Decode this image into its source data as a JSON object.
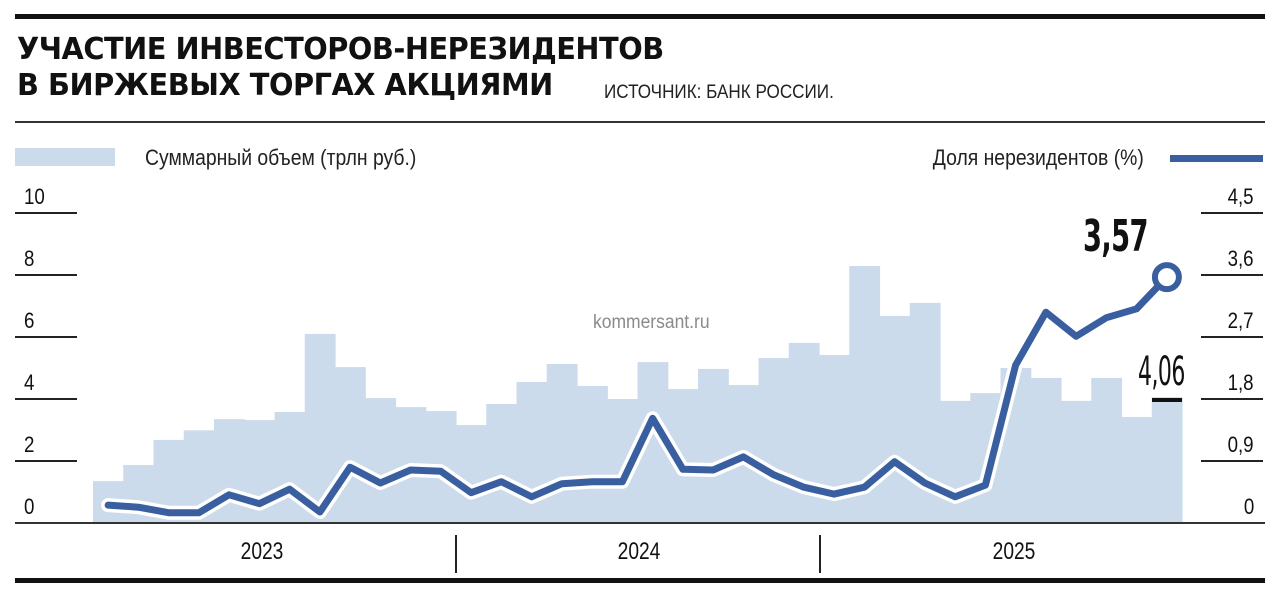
{
  "header": {
    "title_line1": "УЧАСТИЕ ИНВЕСТОРОВ-НЕРЕЗИДЕНТОВ",
    "title_line2": "В БИРЖЕВЫХ ТОРГАХ АКЦИЯМИ",
    "source": "ИСТОЧНИК: БАНК РОССИИ."
  },
  "legend": {
    "bars_label": "Суммарный объем (трлн руб.)",
    "line_label": "Доля нерезидентов (%)"
  },
  "axes": {
    "left_ticks": [
      "10",
      "8",
      "6",
      "4",
      "2",
      "0"
    ],
    "right_ticks": [
      "4,5",
      "3,6",
      "2,7",
      "1,8",
      "0,9",
      "0"
    ],
    "years": [
      "2023",
      "2024",
      "2025"
    ]
  },
  "annotations": {
    "last_share": "3,57",
    "last_volume": "4,06"
  },
  "watermark": "kommersant.ru",
  "colors": {
    "bar": "#ccdbeb",
    "line": "#3a5fa0",
    "line_halo": "#ffffff",
    "text": "#111111"
  },
  "chart_data": {
    "type": "bar+line",
    "title": "Участие инвесторов-нерезидентов в биржевых торгах акциями",
    "subtitle": "Источник: Банк России.",
    "xlabel": "",
    "categories_note": "monthly, Jan 2023 – Dec 2025",
    "x_groups": [
      "2023",
      "2024",
      "2025"
    ],
    "x": [
      "2023-01",
      "2023-02",
      "2023-03",
      "2023-04",
      "2023-05",
      "2023-06",
      "2023-07",
      "2023-08",
      "2023-09",
      "2023-10",
      "2023-11",
      "2023-12",
      "2024-01",
      "2024-02",
      "2024-03",
      "2024-04",
      "2024-05",
      "2024-06",
      "2024-07",
      "2024-08",
      "2024-09",
      "2024-10",
      "2024-11",
      "2024-12",
      "2025-01",
      "2025-02",
      "2025-03",
      "2025-04",
      "2025-05",
      "2025-06",
      "2025-07",
      "2025-08",
      "2025-09",
      "2025-10",
      "2025-11",
      "2025-12"
    ],
    "series": [
      {
        "name": "Суммарный объем (трлн руб.)",
        "type": "bar",
        "axis": "left",
        "values": [
          1.35,
          1.87,
          2.68,
          2.99,
          3.35,
          3.32,
          3.58,
          6.1,
          5.03,
          4.03,
          3.74,
          3.61,
          3.16,
          3.84,
          4.55,
          5.13,
          4.42,
          4.0,
          5.19,
          4.32,
          4.97,
          4.45,
          5.32,
          5.81,
          5.42,
          8.29,
          6.68,
          7.1,
          3.94,
          4.19,
          5.0,
          4.68,
          3.94,
          4.68,
          3.42,
          4.06
        ]
      },
      {
        "name": "Доля нерезидентов (%)",
        "type": "line",
        "axis": "right",
        "values": [
          0.26,
          0.23,
          0.15,
          0.15,
          0.41,
          0.28,
          0.49,
          0.16,
          0.81,
          0.58,
          0.77,
          0.75,
          0.44,
          0.6,
          0.38,
          0.57,
          0.6,
          0.6,
          1.52,
          0.78,
          0.77,
          0.96,
          0.7,
          0.52,
          0.42,
          0.52,
          0.89,
          0.58,
          0.38,
          0.55,
          2.29,
          3.06,
          2.71,
          2.98,
          3.11,
          3.57
        ]
      }
    ],
    "ylabel_left": "трлн руб.",
    "ylim_left": [
      0,
      10
    ],
    "yticks_left": [
      0,
      2,
      4,
      6,
      8,
      10
    ],
    "ylabel_right": "%",
    "ylim_right": [
      0,
      4.5
    ],
    "yticks_right": [
      0,
      0.9,
      1.8,
      2.7,
      3.6,
      4.5
    ],
    "annotations": [
      {
        "text": "3,57",
        "series": "Доля нерезидентов (%)",
        "x": "2025-12"
      },
      {
        "text": "4,06",
        "series": "Суммарный объем (трлн руб.)",
        "x": "2025-12"
      }
    ],
    "legend_position": "top",
    "grid": false
  }
}
